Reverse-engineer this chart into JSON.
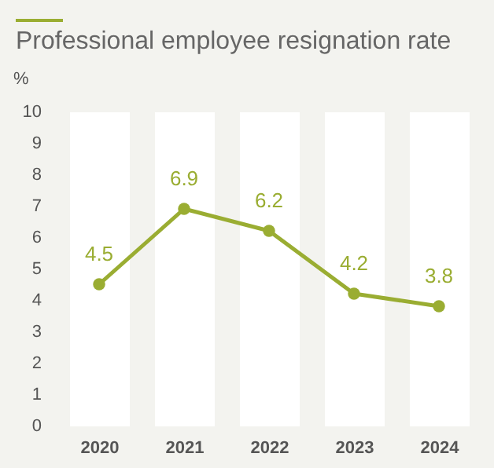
{
  "chart_data": {
    "type": "line",
    "title": "Professional employee resignation rate",
    "ylabel": "%",
    "categories": [
      "2020",
      "2021",
      "2022",
      "2023",
      "2024"
    ],
    "series": [
      {
        "color": "#9aad32",
        "values": [
          4.5,
          6.9,
          6.2,
          4.2,
          3.8
        ]
      }
    ],
    "ylim": [
      0,
      10
    ],
    "yticks": [
      0,
      1,
      2,
      3,
      4,
      5,
      6,
      7,
      8,
      9,
      10
    ],
    "grid": "x",
    "marker": "circle",
    "data_labels": true
  }
}
